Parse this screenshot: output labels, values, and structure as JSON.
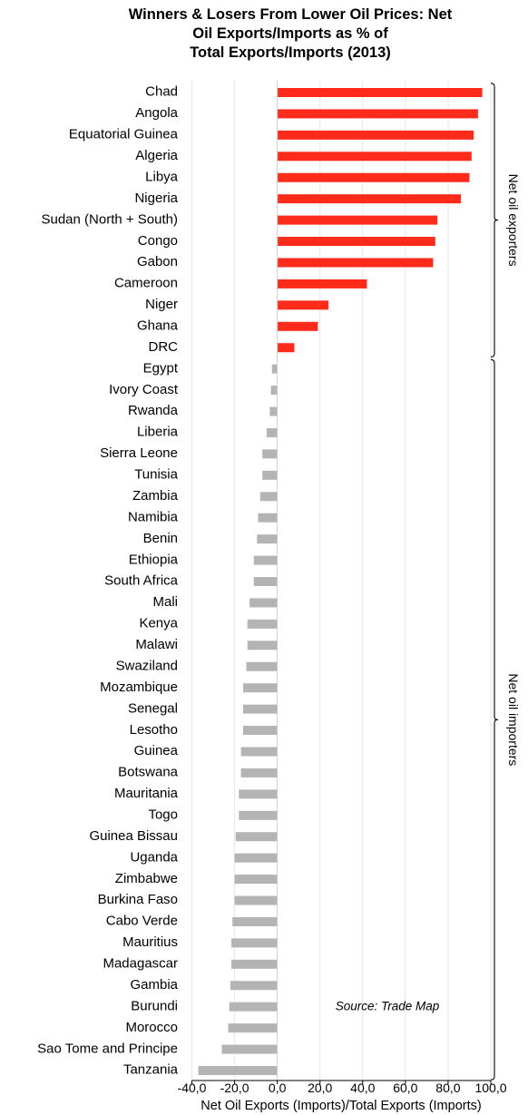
{
  "chart_data": {
    "type": "bar",
    "orientation": "horizontal",
    "title": [
      "Winners & Losers From Lower Oil Prices: Net",
      "Oil Exports/Imports as % of",
      "Total Exports/Imports (2013)"
    ],
    "xlabel": "Net Oil Exports (Imports)/Total Exports (Imports)",
    "xlim": [
      -40,
      100
    ],
    "xticks": [
      -40,
      -20,
      0,
      20,
      40,
      60,
      80,
      100
    ],
    "xtick_labels": [
      "-40,0",
      "-20,0",
      "0,0",
      "20,0",
      "40,0",
      "60,0",
      "80,0",
      "100,0"
    ],
    "grid": "vertical",
    "categories": [
      "Chad",
      "Angola",
      "Equatorial Guinea",
      "Algeria",
      "Libya",
      "Nigeria",
      "Sudan (North + South)",
      "Congo",
      "Gabon",
      "Cameroon",
      "Niger",
      "Ghana",
      "DRC",
      "Egypt",
      "Ivory Coast",
      "Rwanda",
      "Liberia",
      "Sierra Leone",
      "Tunisia",
      "Zambia",
      "Namibia",
      "Benin",
      "Ethiopia",
      "South Africa",
      "Mali",
      "Kenya",
      "Malawi",
      "Swaziland",
      "Mozambique",
      "Senegal",
      "Lesotho",
      "Guinea",
      "Botswana",
      "Mauritania",
      "Togo",
      "Guinea Bissau",
      "Uganda",
      "Zimbabwe",
      "Burkina Faso",
      "Cabo Verde",
      "Mauritius",
      "Madagascar",
      "Gambia",
      "Burundi",
      "Morocco",
      "Sao Tome and Principe",
      "Tanzania"
    ],
    "values": [
      96,
      94,
      92,
      91,
      90,
      86,
      75,
      74,
      73,
      42,
      24,
      19,
      8,
      -2.5,
      -3,
      -3.5,
      -5,
      -7,
      -7,
      -8,
      -9,
      -9.5,
      -11,
      -11,
      -13,
      -14,
      -14,
      -14.5,
      -16,
      -16,
      -16,
      -17,
      -17,
      -18,
      -18,
      -19.5,
      -20,
      -20,
      -20,
      -21,
      -21.5,
      -21.5,
      -22,
      -22.5,
      -23,
      -26,
      -37
    ],
    "colors": {
      "positive": "#fe2a1a",
      "negative": "#b4b4b4"
    },
    "groups": [
      {
        "label": "Net oil exporters",
        "from": 0,
        "to": 12
      },
      {
        "label": "Net oil importers",
        "from": 13,
        "to": 46
      }
    ],
    "annotation": "Source: Trade Map"
  }
}
